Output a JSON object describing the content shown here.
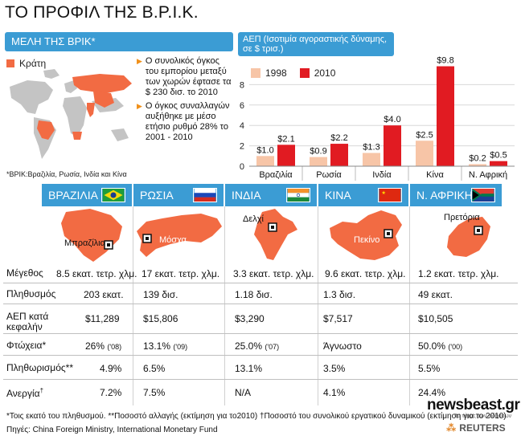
{
  "title": "ΤΟ ΠΡΟΦΙΛ ΤΗΣ Β.Ρ.Ι.Κ.",
  "members": {
    "header": "ΜΕΛΗ ΤΗΣ ΒΡΙΚ*",
    "legend_states": "Κράτη",
    "bullets": [
      "Ο συνολικός όγκος του εμπορίου μεταξύ των χωρών έφτασε τα $ 230 δισ. το 2010",
      "Ο όγκος συναλλαγών αυξήθηκε με μέσο ετήσιο ρυθμό 28% το 2001 - 2010"
    ],
    "note": "*ΒΡΙΚ:Βραζιλία, Ρωσία, Ινδία και Κίνα"
  },
  "gdp_header": "ΑΕΠ (Ισοτιμία αγοραστικής δύναμης, σε $ τρισ.)",
  "chart_data": {
    "type": "bar",
    "title": "ΑΕΠ (Ισοτιμία αγοραστικής δύναμης, σε $ τρισ.)",
    "categories": [
      "Βραζιλία",
      "Ρωσία",
      "Ινδία",
      "Κίνα",
      "Ν. Αφρική"
    ],
    "series": [
      {
        "name": "1998",
        "values": [
          1.0,
          0.9,
          1.3,
          2.5,
          0.2
        ],
        "labels": [
          "$1.0",
          "$0.9",
          "$1.3",
          "$2.5",
          "$0.2"
        ],
        "color": "#f7c5a7"
      },
      {
        "name": "2010",
        "values": [
          2.1,
          2.2,
          4.0,
          9.8,
          0.5
        ],
        "labels": [
          "$2.1",
          "$2.2",
          "$4.0",
          "$9.8",
          "$0.5"
        ],
        "color": "#e11b22"
      }
    ],
    "yticks": [
      "0",
      "2",
      "4",
      "6",
      "8"
    ],
    "ylim": [
      0,
      10
    ]
  },
  "countries": [
    {
      "name": "ΒΡΑΖΙΛΙΑ",
      "capital": "Μπραζίλια"
    },
    {
      "name": "ΡΩΣΙΑ",
      "capital": "Μόσχα"
    },
    {
      "name": "ΙΝΔΙΑ",
      "capital": "Δελχί"
    },
    {
      "name": "ΚΙΝΑ",
      "capital": "Πεκίνο"
    },
    {
      "name": "Ν. ΑΦΡΙΚΗ",
      "capital": "Πρετόρια"
    }
  ],
  "rows": [
    {
      "label": "Μέγεθος",
      "values": [
        "8.5 εκατ. τετρ. χλμ.",
        "17 εκατ. τετρ. χλμ.",
        "3.3 εκατ. τετρ. χλμ.",
        "9.6 εκατ. τετρ. χλμ.",
        "1.2 εκατ. τετρ. χλμ."
      ]
    },
    {
      "label": "Πληθυσμός",
      "values": [
        "203 εκατ.",
        "139 δισ.",
        "1.18 δισ.",
        "1.3 δισ.",
        "49 εκατ."
      ]
    },
    {
      "label": "ΑΕΠ κατά",
      "label2": "κεφαλήν",
      "values": [
        "$11,289",
        "$15,806",
        "$3,290",
        "$7,517",
        "$10,505"
      ]
    },
    {
      "label": "Φτώχεια*",
      "values": [
        "26%",
        "13.1%",
        "25.0%",
        "Άγνωστο",
        "50.0%"
      ],
      "notes": [
        "('08)",
        "('09)",
        "('07)",
        "",
        "('00)"
      ]
    },
    {
      "label": "Πληθωρισμός**",
      "values": [
        "4.9%",
        "6.5%",
        "13.1%",
        "3.5%",
        "5.5%"
      ]
    },
    {
      "label": "Ανεργία",
      "label_sup": "†",
      "values": [
        "7.2%",
        "7.5%",
        "N/A",
        "4.1%",
        "24.4%"
      ]
    }
  ],
  "footnote": "*Τοις εκατό του πληθυσμού.   **Ποσοστό αλλαγής (εκτίμηση για το2010)   †Ποσοστό του συνολικού εργατικού δυναμικού (εκτίμηση για το 2010)",
  "source": "Πηγές: China Foreign Ministry, International Monetary Fund",
  "brand": "newsbeast.gr",
  "brand_tagline": "το τέρας των ειδήσεων",
  "reuters": "REUTERS",
  "colors": {
    "blue": "#3b9cd4",
    "orange": "#f26b43",
    "light": "#f7c5a7",
    "red": "#e11b22"
  }
}
